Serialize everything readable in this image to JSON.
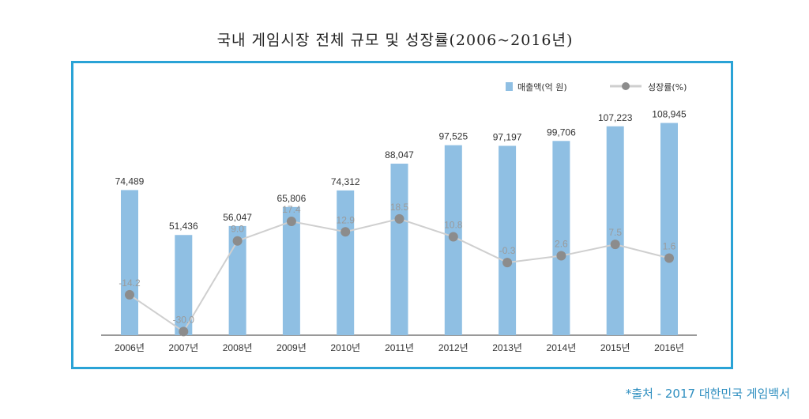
{
  "chart_data": {
    "type": "bar",
    "title": "국내 게임시장 전체 규모 및 성장률(2006~2016년)",
    "categories": [
      "2006년",
      "2007년",
      "2008년",
      "2009년",
      "2010년",
      "2011년",
      "2012년",
      "2013년",
      "2014년",
      "2015년",
      "2016년"
    ],
    "series": [
      {
        "name": "매출액(억 원)",
        "type": "bar",
        "values": [
          74489,
          51436,
          56047,
          65806,
          74312,
          88047,
          97525,
          97197,
          99706,
          107223,
          108945
        ],
        "labels": [
          "74,489",
          "51,436",
          "56,047",
          "65,806",
          "74,312",
          "88,047",
          "97,525",
          "97,197",
          "99,706",
          "107,223",
          "108,945"
        ]
      },
      {
        "name": "성장률(%)",
        "type": "line",
        "values": [
          -14.2,
          -30.0,
          9.0,
          17.4,
          12.9,
          18.5,
          10.8,
          -0.3,
          2.6,
          7.5,
          1.6
        ],
        "labels": [
          "-14.2",
          "-30.0",
          "9.0",
          "17.4",
          "12.9",
          "18.5",
          "10.8",
          "-0.3",
          "2.6",
          "7.5",
          "1.6"
        ]
      }
    ],
    "bar_axis_range": [
      0,
      112000
    ],
    "line_axis_range": [
      -36,
      46
    ],
    "legend_position": "top-right",
    "grid": false
  },
  "source": "*출처 - 2017 대한민국 게임백서",
  "colors": {
    "bar": "#8fbfe3",
    "line": "#cfcfcf",
    "marker": "#8c8c8c",
    "frame": "#2aa3d6"
  }
}
